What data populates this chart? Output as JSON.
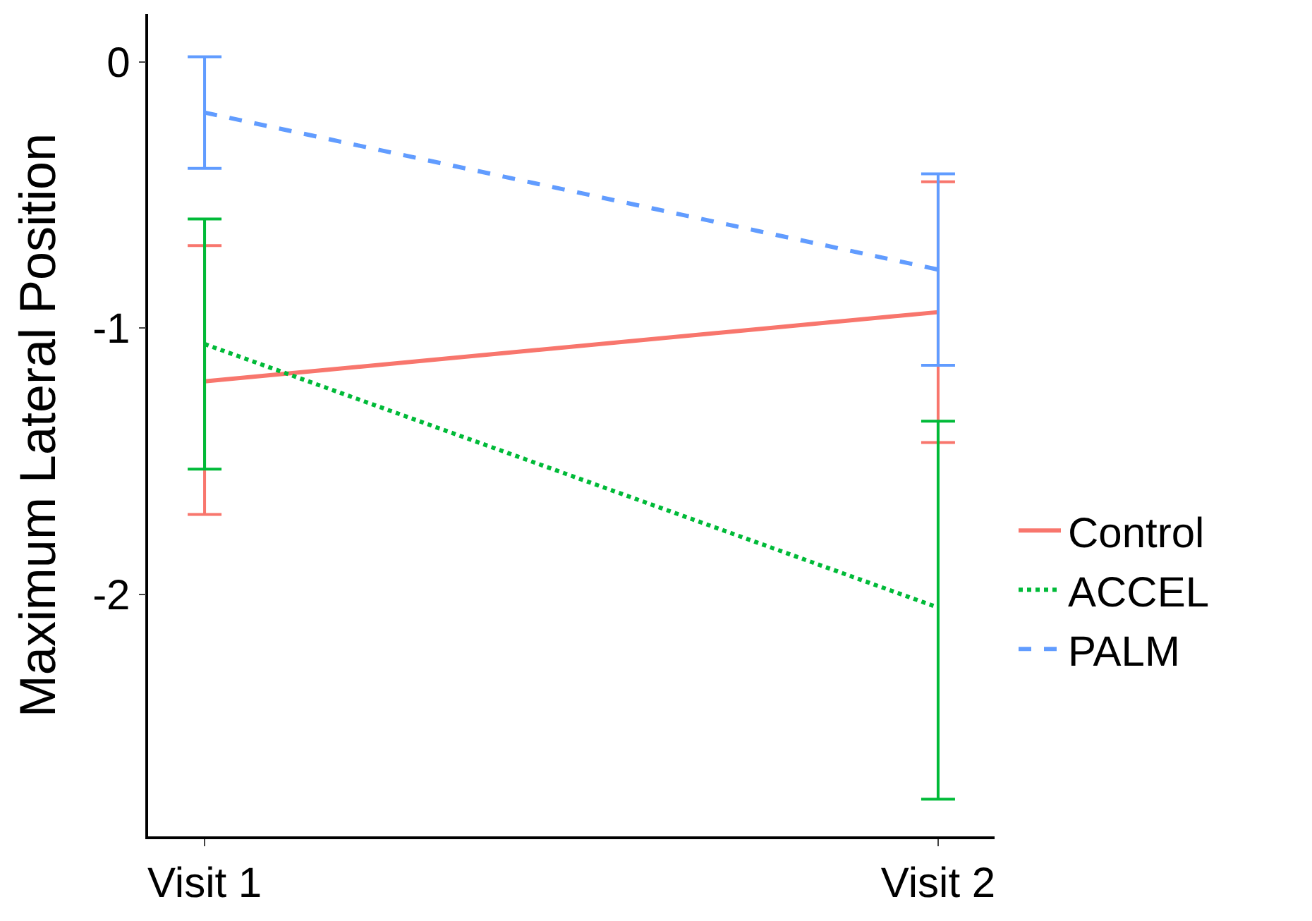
{
  "chart_data": {
    "type": "line",
    "ylabel": "Maximum Lateral Position",
    "categories": [
      "Visit 1",
      "Visit 2"
    ],
    "series": [
      {
        "name": "Control",
        "color": "#f8766d",
        "line_style": "solid",
        "values": [
          -1.2,
          -0.94
        ],
        "errors": [
          [
            -1.7,
            -0.69
          ],
          [
            -1.43,
            -0.45
          ]
        ]
      },
      {
        "name": "ACCEL",
        "color": "#00ba38",
        "line_style": "dotted",
        "values": [
          -1.06,
          -2.05
        ],
        "errors": [
          [
            -1.53,
            -0.59
          ],
          [
            -2.77,
            -1.35
          ]
        ]
      },
      {
        "name": "PALM",
        "color": "#619cff",
        "line_style": "dashed",
        "values": [
          -0.19,
          -0.78
        ],
        "errors": [
          [
            -0.4,
            0.02
          ],
          [
            -1.14,
            -0.42
          ]
        ]
      }
    ],
    "ylim": [
      -2.91,
      0.18
    ],
    "yticks": [
      0,
      -1,
      -2
    ],
    "grid": false,
    "legend": "right",
    "marker": "none"
  }
}
